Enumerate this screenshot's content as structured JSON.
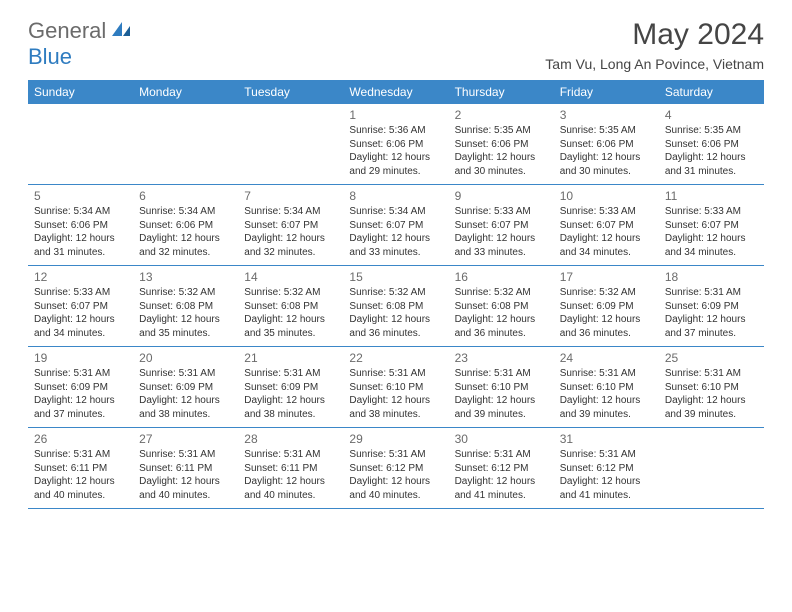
{
  "logo": {
    "text_general": "General",
    "text_blue": "Blue"
  },
  "title": "May 2024",
  "location": "Tam Vu, Long An Povince, Vietnam",
  "colors": {
    "header_bg": "#3b87c8",
    "header_text": "#ffffff",
    "border": "#3b87c8",
    "logo_gray": "#6b6b6b",
    "logo_blue": "#2f7cc0",
    "body_text": "#333333",
    "daynum_text": "#6b6b6b",
    "background": "#ffffff"
  },
  "typography": {
    "title_fontsize": 30,
    "location_fontsize": 14,
    "dow_fontsize": 12,
    "daynum_fontsize": 12,
    "detail_fontsize": 10,
    "logo_fontsize": 22
  },
  "days_of_week": [
    "Sunday",
    "Monday",
    "Tuesday",
    "Wednesday",
    "Thursday",
    "Friday",
    "Saturday"
  ],
  "weeks": [
    [
      null,
      null,
      null,
      {
        "num": "1",
        "sunrise": "5:36 AM",
        "sunset": "6:06 PM",
        "daylight": "12 hours and 29 minutes."
      },
      {
        "num": "2",
        "sunrise": "5:35 AM",
        "sunset": "6:06 PM",
        "daylight": "12 hours and 30 minutes."
      },
      {
        "num": "3",
        "sunrise": "5:35 AM",
        "sunset": "6:06 PM",
        "daylight": "12 hours and 30 minutes."
      },
      {
        "num": "4",
        "sunrise": "5:35 AM",
        "sunset": "6:06 PM",
        "daylight": "12 hours and 31 minutes."
      }
    ],
    [
      {
        "num": "5",
        "sunrise": "5:34 AM",
        "sunset": "6:06 PM",
        "daylight": "12 hours and 31 minutes."
      },
      {
        "num": "6",
        "sunrise": "5:34 AM",
        "sunset": "6:06 PM",
        "daylight": "12 hours and 32 minutes."
      },
      {
        "num": "7",
        "sunrise": "5:34 AM",
        "sunset": "6:07 PM",
        "daylight": "12 hours and 32 minutes."
      },
      {
        "num": "8",
        "sunrise": "5:34 AM",
        "sunset": "6:07 PM",
        "daylight": "12 hours and 33 minutes."
      },
      {
        "num": "9",
        "sunrise": "5:33 AM",
        "sunset": "6:07 PM",
        "daylight": "12 hours and 33 minutes."
      },
      {
        "num": "10",
        "sunrise": "5:33 AM",
        "sunset": "6:07 PM",
        "daylight": "12 hours and 34 minutes."
      },
      {
        "num": "11",
        "sunrise": "5:33 AM",
        "sunset": "6:07 PM",
        "daylight": "12 hours and 34 minutes."
      }
    ],
    [
      {
        "num": "12",
        "sunrise": "5:33 AM",
        "sunset": "6:07 PM",
        "daylight": "12 hours and 34 minutes."
      },
      {
        "num": "13",
        "sunrise": "5:32 AM",
        "sunset": "6:08 PM",
        "daylight": "12 hours and 35 minutes."
      },
      {
        "num": "14",
        "sunrise": "5:32 AM",
        "sunset": "6:08 PM",
        "daylight": "12 hours and 35 minutes."
      },
      {
        "num": "15",
        "sunrise": "5:32 AM",
        "sunset": "6:08 PM",
        "daylight": "12 hours and 36 minutes."
      },
      {
        "num": "16",
        "sunrise": "5:32 AM",
        "sunset": "6:08 PM",
        "daylight": "12 hours and 36 minutes."
      },
      {
        "num": "17",
        "sunrise": "5:32 AM",
        "sunset": "6:09 PM",
        "daylight": "12 hours and 36 minutes."
      },
      {
        "num": "18",
        "sunrise": "5:31 AM",
        "sunset": "6:09 PM",
        "daylight": "12 hours and 37 minutes."
      }
    ],
    [
      {
        "num": "19",
        "sunrise": "5:31 AM",
        "sunset": "6:09 PM",
        "daylight": "12 hours and 37 minutes."
      },
      {
        "num": "20",
        "sunrise": "5:31 AM",
        "sunset": "6:09 PM",
        "daylight": "12 hours and 38 minutes."
      },
      {
        "num": "21",
        "sunrise": "5:31 AM",
        "sunset": "6:09 PM",
        "daylight": "12 hours and 38 minutes."
      },
      {
        "num": "22",
        "sunrise": "5:31 AM",
        "sunset": "6:10 PM",
        "daylight": "12 hours and 38 minutes."
      },
      {
        "num": "23",
        "sunrise": "5:31 AM",
        "sunset": "6:10 PM",
        "daylight": "12 hours and 39 minutes."
      },
      {
        "num": "24",
        "sunrise": "5:31 AM",
        "sunset": "6:10 PM",
        "daylight": "12 hours and 39 minutes."
      },
      {
        "num": "25",
        "sunrise": "5:31 AM",
        "sunset": "6:10 PM",
        "daylight": "12 hours and 39 minutes."
      }
    ],
    [
      {
        "num": "26",
        "sunrise": "5:31 AM",
        "sunset": "6:11 PM",
        "daylight": "12 hours and 40 minutes."
      },
      {
        "num": "27",
        "sunrise": "5:31 AM",
        "sunset": "6:11 PM",
        "daylight": "12 hours and 40 minutes."
      },
      {
        "num": "28",
        "sunrise": "5:31 AM",
        "sunset": "6:11 PM",
        "daylight": "12 hours and 40 minutes."
      },
      {
        "num": "29",
        "sunrise": "5:31 AM",
        "sunset": "6:12 PM",
        "daylight": "12 hours and 40 minutes."
      },
      {
        "num": "30",
        "sunrise": "5:31 AM",
        "sunset": "6:12 PM",
        "daylight": "12 hours and 41 minutes."
      },
      {
        "num": "31",
        "sunrise": "5:31 AM",
        "sunset": "6:12 PM",
        "daylight": "12 hours and 41 minutes."
      },
      null
    ]
  ],
  "labels": {
    "sunrise": "Sunrise:",
    "sunset": "Sunset:",
    "daylight": "Daylight:"
  }
}
